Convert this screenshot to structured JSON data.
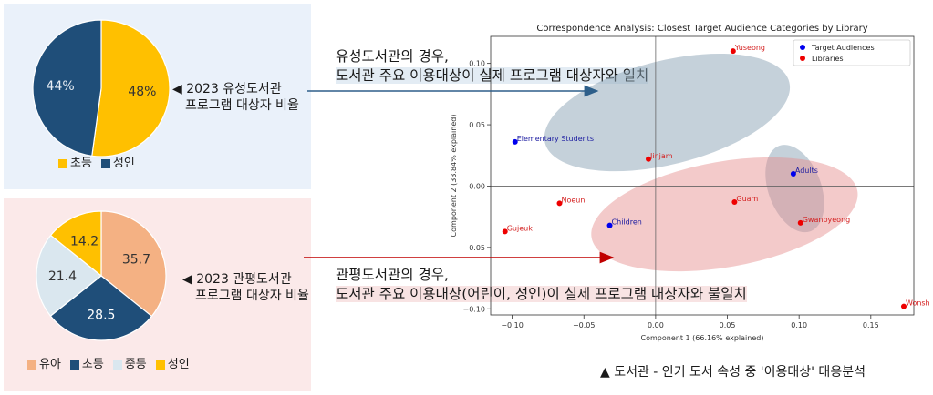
{
  "colors": {
    "yellow": "#ffc000",
    "navy": "#1f4e79",
    "peach": "#f4b183",
    "lightblue": "#dae7ef",
    "panel_blue": "#eaf1fa",
    "panel_pink": "#fbe9e9",
    "arrow_blue": "#2e5f8a",
    "arrow_red": "#c00000",
    "target_point": "#0000ee",
    "library_point": "#ee0000",
    "ellipse_blue": "#8ca3b5",
    "ellipse_red": "#e48a8a"
  },
  "top_panel": {
    "caption_line1": "◀ 2023 유성도서관",
    "caption_line2": "프로그램 대상자 비율",
    "legend": [
      {
        "label": "초등",
        "color": "#ffc000"
      },
      {
        "label": "성인",
        "color": "#1f4e79"
      }
    ]
  },
  "bottom_panel": {
    "caption_line1": "◀ 2023 관평도서관",
    "caption_line2": "프로그램 대상자 비율",
    "legend": [
      {
        "label": "유아",
        "color": "#f4b183"
      },
      {
        "label": "초등",
        "color": "#1f4e79"
      },
      {
        "label": "중등",
        "color": "#dae7ef"
      },
      {
        "label": "성인",
        "color": "#ffc000"
      }
    ]
  },
  "annotations": {
    "top_line1": "유성도서관의 경우,",
    "top_line2": "도서관 주요 이용대상이 실제 프로그램 대상자와 일치",
    "bottom_line1": "관평도서관의 경우,",
    "bottom_line2": "도서관 주요 이용대상(어린이, 성인)이 실제 프로그램 대상자와 불일치"
  },
  "bottom_caption": "▲ 도서관 - 인기 도서 속성 중 '이용대상' 대응분석",
  "chart_data": [
    {
      "type": "pie",
      "slices": [
        {
          "label": "초등",
          "value": 48,
          "display": "48%",
          "color": "#ffc000"
        },
        {
          "label": "성인",
          "value": 44,
          "display": "44%",
          "color": "#1f4e79"
        }
      ]
    },
    {
      "type": "pie",
      "slices": [
        {
          "label": "유아",
          "value": 35.7,
          "display": "35.7",
          "color": "#f4b183"
        },
        {
          "label": "초등",
          "value": 28.5,
          "display": "28.5",
          "color": "#1f4e79"
        },
        {
          "label": "중등",
          "value": 21.4,
          "display": "21.4",
          "color": "#dae7ef"
        },
        {
          "label": "성인",
          "value": 14.2,
          "display": "14.2",
          "color": "#ffc000"
        }
      ]
    },
    {
      "type": "scatter",
      "title": "Correspondence Analysis: Closest Target Audience Categories by Library",
      "xlabel": "Component 1 (66.16% explained)",
      "ylabel": "Component 2 (33.84% explained)",
      "xlim": [
        -0.115,
        0.18
      ],
      "ylim": [
        -0.105,
        0.122
      ],
      "xticks": [
        -0.1,
        -0.05,
        0.0,
        0.05,
        0.1,
        0.15
      ],
      "xtick_labels": [
        "−0.10",
        "−0.05",
        "0.00",
        "0.05",
        "0.10",
        "0.15"
      ],
      "yticks": [
        -0.1,
        -0.05,
        0.0,
        0.05,
        0.1
      ],
      "ytick_labels": [
        "−0.10",
        "−0.05",
        "0.00",
        "0.05",
        "0.10"
      ],
      "legend_position": "top-right",
      "series": [
        {
          "name": "Target Audiences",
          "color": "#0000ee",
          "points": [
            {
              "label": "Elementary Students",
              "x": -0.098,
              "y": 0.036
            },
            {
              "label": "Adults",
              "x": 0.096,
              "y": 0.01
            },
            {
              "label": "Children",
              "x": -0.032,
              "y": -0.032
            }
          ]
        },
        {
          "name": "Libraries",
          "color": "#ee0000",
          "points": [
            {
              "label": "Yuseong",
              "x": 0.054,
              "y": 0.11
            },
            {
              "label": "Jinjam",
              "x": -0.005,
              "y": 0.022
            },
            {
              "label": "Noeun",
              "x": -0.067,
              "y": -0.014
            },
            {
              "label": "Gujeuk",
              "x": -0.105,
              "y": -0.037
            },
            {
              "label": "Guam",
              "x": 0.055,
              "y": -0.013
            },
            {
              "label": "Gwanpyeong",
              "x": 0.101,
              "y": -0.03
            },
            {
              "label": "Wonshinhung",
              "x": 0.173,
              "y": -0.098
            }
          ]
        }
      ]
    }
  ]
}
